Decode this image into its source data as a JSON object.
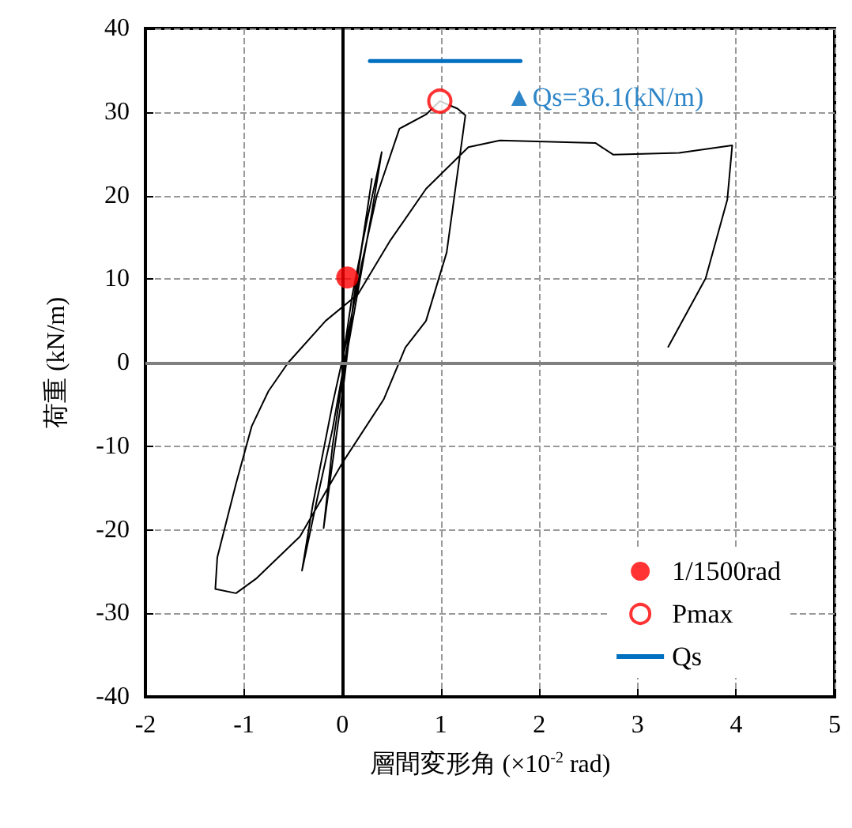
{
  "chart_data": {
    "type": "line",
    "xlabel": "層間変形角 (×10$^{-2}$ rad)",
    "ylabel": "荷重 (kN/m)",
    "xlim": [
      -2,
      5
    ],
    "xticks": [
      -2,
      -1,
      0,
      1,
      2,
      3,
      4,
      5
    ],
    "ylim": [
      -40,
      40
    ],
    "yticks": [
      -40,
      -30,
      -20,
      -10,
      0,
      10,
      20,
      30,
      40
    ],
    "grid": true,
    "legend": "bottom right",
    "line_style": "solid",
    "series": [
      {
        "color": "#000000",
        "marker": "none",
        "x": [
          0,
          0.1,
          0.25,
          0.4,
          0.3,
          0.15,
          0,
          -0.1,
          -0.19,
          -0.1,
          0.02,
          0.12,
          0.25,
          0.3,
          0.2,
          0.05,
          -0.1,
          -0.25,
          -0.41,
          -0.3,
          -0.1,
          0.05,
          0.2,
          0.35,
          0.58,
          0.85,
          0.99,
          1.17,
          1.25,
          1.17,
          1.06,
          0.85,
          0.64,
          0.42,
          0,
          -0.43,
          -0.87,
          -1.08,
          -1.29,
          -1.27,
          -1.08,
          -0.92,
          -0.75,
          -0.55,
          -0.17,
          0.16,
          0.48,
          0.85,
          1.28,
          1.6,
          2.57,
          2.75,
          3.42,
          3.96,
          3.91,
          3.69,
          3.31
        ],
        "values": [
          0,
          8,
          17,
          25.2,
          18,
          8,
          -2,
          -10,
          -19.8,
          -12,
          -2,
          8,
          18,
          22,
          14,
          2,
          -8,
          -16,
          -24.9,
          -17,
          -5,
          3,
          12,
          20,
          28,
          29.7,
          31.3,
          30.4,
          29.6,
          22.7,
          13.2,
          5,
          1.8,
          -4.4,
          -12,
          -20.8,
          -25.8,
          -27.6,
          -27.1,
          -23.3,
          -14.5,
          -7.6,
          -3.4,
          0,
          5,
          8.2,
          14.5,
          20.8,
          25.8,
          26.6,
          26.3,
          24.9,
          25.1,
          26,
          19.5,
          10.1,
          1.9
        ]
      },
      {
        "name": "1/1500rad",
        "type": "scatter",
        "color": "#ff0000",
        "marker": "circle",
        "x": [
          0.05
        ],
        "values": [
          10.2
        ]
      },
      {
        "name": "Pmax",
        "type": "scatter",
        "color": "#ff0000",
        "marker": "open circle",
        "x": [
          0.99
        ],
        "values": [
          31.3
        ]
      },
      {
        "name": "Qs",
        "type": "line",
        "color": "#0070c0",
        "marker": "none",
        "x": [
          0.28,
          1.81
        ],
        "values": [
          36.1,
          36.1
        ]
      }
    ],
    "ref_lines": [
      {
        "axis": "x",
        "value": 0,
        "color": "#000000"
      },
      {
        "axis": "y",
        "value": 0,
        "color": "#808080"
      }
    ],
    "annotations": [
      "▲Qs=36.1(kN/m)"
    ]
  }
}
